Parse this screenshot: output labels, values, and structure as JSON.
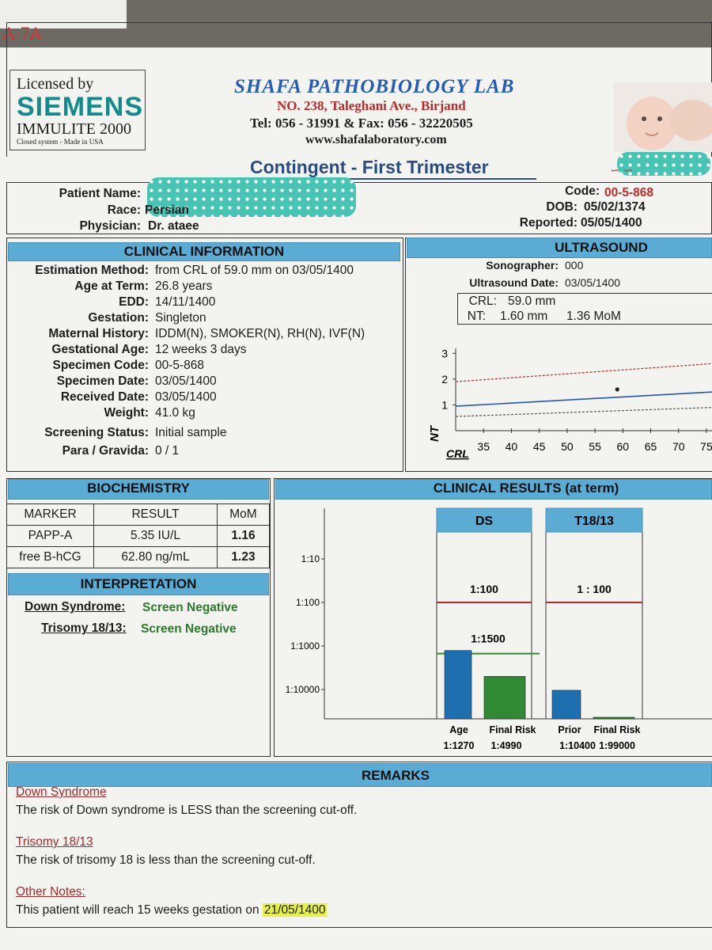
{
  "corner_scribble": "A-7A",
  "siemens": {
    "licensed_by": "Licensed by",
    "brand": "SIEMENS",
    "product": "IMMULITE 2000",
    "note": "Closed system - Made in USA"
  },
  "lab": {
    "name": "SHAFA PATHOBIOLOGY LAB",
    "address": "NO. 238, Taleghani Ave., Birjand",
    "phone": "Tel: 056 - 31991  &  Fax: 056 - 32220505",
    "website": "www.shafalaboratory.com"
  },
  "report_title": "Contingent - First Trimester",
  "patient": {
    "name_label": "Patient Name:",
    "race_label": "Race:",
    "race": "Persian",
    "physician_label": "Physician:",
    "physician": "Dr. ataee",
    "code_label": "Code:",
    "code": "00-5-868",
    "dob_label": "DOB:",
    "dob": "05/02/1374",
    "reported_label": "Reported:",
    "reported": "05/05/1400"
  },
  "clinical": {
    "title": "CLINICAL INFORMATION",
    "rows": [
      {
        "label": "Estimation Method:",
        "value": "from CRL of 59.0 mm on 03/05/1400"
      },
      {
        "label": "Age at Term:",
        "value": "26.8 years"
      },
      {
        "label": "EDD:",
        "value": "14/11/1400"
      },
      {
        "label": "Gestation:",
        "value": "Singleton"
      },
      {
        "label": "Maternal History:",
        "value": "IDDM(N), SMOKER(N), RH(N), IVF(N)"
      },
      {
        "label": "Gestational Age:",
        "value": "12 weeks 3 days"
      },
      {
        "label": "Specimen Code:",
        "value": "00-5-868"
      },
      {
        "label": "Specimen Date:",
        "value": "03/05/1400"
      },
      {
        "label": "Received Date:",
        "value": "03/05/1400"
      },
      {
        "label": "Weight:",
        "value": "41.0 kg"
      },
      {
        "label": "Screening Status:",
        "value": "Initial sample"
      },
      {
        "label": "Para / Gravida:",
        "value": "0 / 1"
      }
    ]
  },
  "ultrasound": {
    "title": "ULTRASOUND",
    "sonographer_label": "Sonographer:",
    "sonographer": "000",
    "date_label": "Ultrasound Date:",
    "date": "03/05/1400",
    "crl_label": "CRL:",
    "crl": "59.0 mm",
    "nt_label": "NT:",
    "nt": "1.60  mm",
    "nt_mom": "1.36 MoM",
    "chart_ylabel": "NT",
    "chart_xlabel": "CRL",
    "y_ticks": [
      "1",
      "2",
      "3"
    ],
    "x_ticks": [
      "35",
      "40",
      "45",
      "50",
      "55",
      "60",
      "65",
      "70",
      "75"
    ]
  },
  "biochemistry": {
    "title": "BIOCHEMISTRY",
    "headers": [
      "MARKER",
      "RESULT",
      "MoM"
    ],
    "rows": [
      {
        "marker": "PAPP-A",
        "result": "5.35 IU/L",
        "mom": "1.16"
      },
      {
        "marker": "free B-hCG",
        "result": "62.80 ng/mL",
        "mom": "1.23"
      }
    ]
  },
  "interpretation": {
    "title": "INTERPRETATION",
    "ds_label": "Down Syndrome:",
    "ds_value": "Screen Negative",
    "t18_label": "Trisomy 18/13:",
    "t18_value": "Screen Negative"
  },
  "results": {
    "title": "CLINICAL RESULTS (at term)",
    "y_ticks": [
      "1:10",
      "1:100",
      "1:1000",
      "1:10000"
    ],
    "ds_header": "DS",
    "t18_header": "T18/13",
    "ds_cutoff": "1:100",
    "ds_contingent": "1:1500",
    "t18_cutoff": "1 : 100",
    "bar_labels": [
      "Age",
      "Final Risk",
      "Prior",
      "Final Risk"
    ],
    "bar_values": [
      "1:1270",
      "1:4990",
      "1:10400",
      "1:99000"
    ],
    "colors": {
      "age": "#1d6fb0",
      "final": "#2f8a33",
      "cutoff": "#b42a2a",
      "contingent": "#2f8a33"
    }
  },
  "chart_data": [
    {
      "type": "line",
      "title": "",
      "xlabel": "CRL",
      "ylabel": "NT",
      "xlim": [
        30,
        76
      ],
      "ylim": [
        0,
        3.5
      ],
      "x_ticks": [
        35,
        40,
        45,
        50,
        55,
        60,
        65,
        70,
        75
      ],
      "y_ticks": [
        1,
        2,
        3
      ],
      "series": [
        {
          "name": "upper",
          "x": [
            30,
            76
          ],
          "y": [
            1.9,
            2.6
          ]
        },
        {
          "name": "median",
          "x": [
            30,
            76
          ],
          "y": [
            0.95,
            1.5
          ]
        },
        {
          "name": "lower",
          "x": [
            30,
            76
          ],
          "y": [
            0.55,
            0.9
          ]
        }
      ],
      "points": [
        {
          "x": 59.0,
          "y": 1.6
        }
      ]
    },
    {
      "type": "bar",
      "title": "CLINICAL RESULTS (at term)",
      "scale": "log",
      "y_ticks": [
        "1:10",
        "1:100",
        "1:1000",
        "1:10000"
      ],
      "categories": [
        "Age",
        "Final Risk",
        "Prior",
        "Final Risk"
      ],
      "values": [
        1270,
        4990,
        10400,
        99000
      ],
      "cutoffs": {
        "DS": 100,
        "DS_contingent": 1500,
        "T18/13": 100
      }
    }
  ],
  "remarks": {
    "title": "REMARKS",
    "ds_head": "Down Syndrome",
    "ds_text": "The risk of Down syndrome is LESS than the screening cut-off.",
    "t18_head": "Trisomy 18/13",
    "t18_text": "The risk of trisomy 18 is less than the screening cut-off.",
    "notes_head": "Other Notes:",
    "notes_text": "This patient will reach 15 weeks gestation on",
    "notes_date": "21/05/1400"
  }
}
